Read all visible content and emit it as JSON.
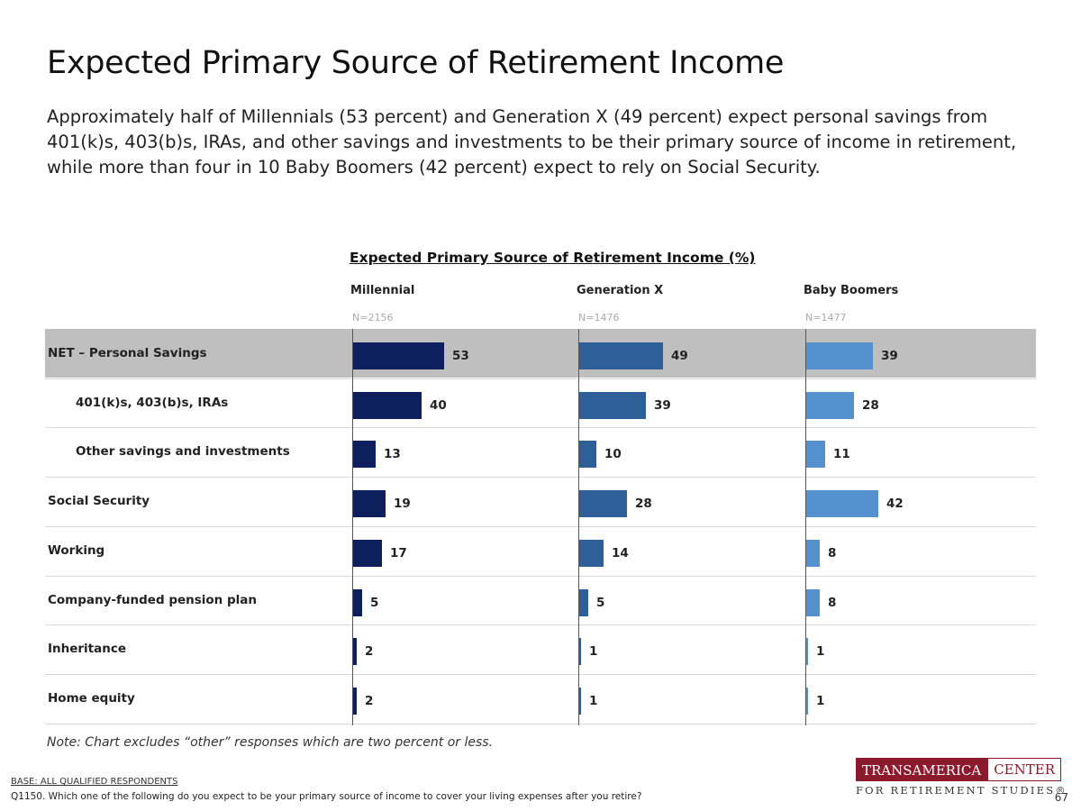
{
  "header": {
    "title": "Expected Primary Source of Retirement Income",
    "subtitle": "Approximately half of Millennials (53 percent) and Generation X (49 percent) expect personal savings from 401(k)s, 403(b)s, IRAs, and other savings and investments to be their primary source of income in retirement, while more than four in 10 Baby Boomers (42 percent) expect to rely on Social Security."
  },
  "chart_data": {
    "type": "bar",
    "orientation": "horizontal",
    "title": "Expected Primary Source of Retirement Income (%)",
    "categories": [
      "NET – Personal Savings",
      "401(k)s, 403(b)s, IRAs",
      "Other savings and investments",
      "Social Security",
      "Working",
      "Company-funded pension plan",
      "Inheritance",
      "Home equity"
    ],
    "category_indent": [
      false,
      true,
      true,
      false,
      false,
      false,
      false,
      false
    ],
    "category_highlight": [
      true,
      false,
      false,
      false,
      false,
      false,
      false,
      false
    ],
    "series": [
      {
        "name": "Millennial",
        "n": "N=2156",
        "color": "#0d1f5c",
        "values": [
          53,
          40,
          13,
          19,
          17,
          5,
          2,
          2
        ]
      },
      {
        "name": "Generation X",
        "n": "N=1476",
        "color": "#2e5f99",
        "values": [
          49,
          39,
          10,
          28,
          14,
          5,
          1,
          1
        ]
      },
      {
        "name": "Baby Boomers",
        "n": "N=1477",
        "color": "#5590cf",
        "values": [
          39,
          28,
          11,
          42,
          8,
          8,
          1,
          1
        ]
      }
    ],
    "xlim": [
      0,
      100
    ]
  },
  "footer": {
    "note": "Note: Chart excludes “other” responses which are two percent or less.",
    "base": "BASE: ALL QUALIFIED RESPONDENTS",
    "question": "Q1150. Which one of the following do you expect to be your primary source of income to cover your living expenses after you retire?",
    "page_number": "67"
  },
  "logo": {
    "name_left": "TRANSAMERICA",
    "name_right": "CENTER",
    "tagline": "FOR RETIREMENT STUDIES®"
  }
}
